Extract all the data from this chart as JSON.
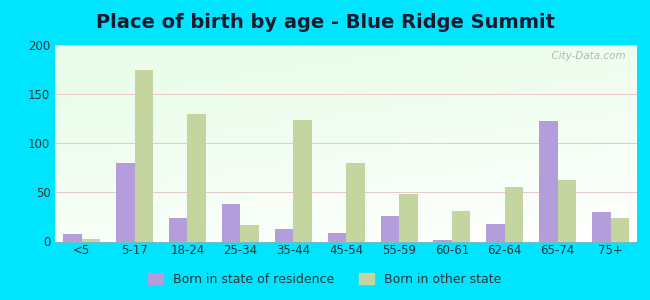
{
  "title": "Place of birth by age - Blue Ridge Summit",
  "categories": [
    "<5",
    "5-17",
    "18-24",
    "25-34",
    "35-44",
    "45-54",
    "55-59",
    "60-61",
    "62-64",
    "65-74",
    "75+"
  ],
  "born_in_state": [
    8,
    80,
    24,
    38,
    13,
    9,
    26,
    2,
    18,
    123,
    30
  ],
  "born_other_state": [
    3,
    175,
    130,
    17,
    124,
    80,
    48,
    31,
    55,
    63,
    24
  ],
  "color_state": "#b39ddb",
  "color_other": "#c5d5a0",
  "background_outer": "#00e5ff",
  "ylim": [
    0,
    200
  ],
  "yticks": [
    0,
    50,
    100,
    150,
    200
  ],
  "legend_state_label": "Born in state of residence",
  "legend_other_label": "Born in other state",
  "watermark": "  City-Data.com",
  "title_fontsize": 14,
  "tick_fontsize": 8.5,
  "legend_fontsize": 9
}
